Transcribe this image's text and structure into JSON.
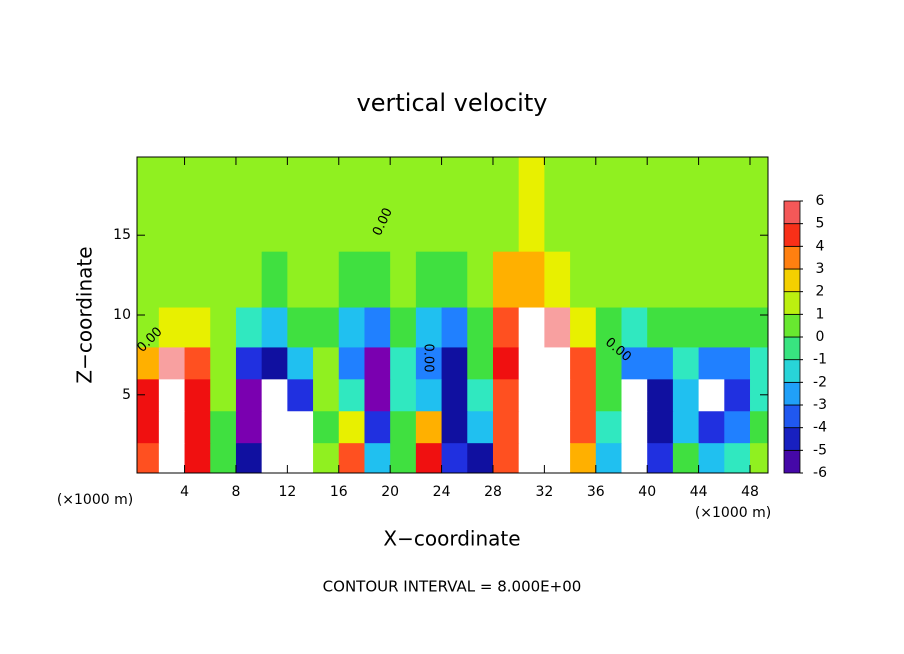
{
  "chart_data": {
    "type": "heatmap",
    "title": "vertical velocity",
    "x_label": "X−coordinate",
    "y_label": "Z−coordinate",
    "x_unit_label": "(×1000 m)",
    "x_unit_label_right": "(×1000 m)",
    "footnote": "CONTOUR INTERVAL = 8.000E+00",
    "contour_labels": [
      "0.00",
      "0.00",
      "0.00",
      "0.00"
    ],
    "x": [
      1,
      3,
      5,
      7,
      9,
      11,
      13,
      15,
      17,
      19,
      21,
      23,
      25,
      27,
      29,
      31,
      33,
      35,
      37,
      39,
      41,
      43,
      45,
      47,
      49
    ],
    "y": [
      1,
      3,
      5,
      7,
      9,
      12,
      16
    ],
    "z": [
      [
        4,
        8,
        5,
        0,
        -5,
        -7,
        -7,
        1,
        4,
        -2,
        0,
        5,
        -4,
        -5,
        4,
        8,
        7,
        3,
        -2,
        -7,
        -4,
        0,
        -2,
        -1,
        1
      ],
      [
        5,
        8,
        5,
        0,
        -6,
        -8,
        -7,
        0,
        2,
        -4,
        0,
        3,
        -5,
        -2,
        4,
        8,
        8,
        4,
        -1,
        -8,
        -5,
        -2,
        -4,
        -3,
        0
      ],
      [
        5,
        8,
        5,
        1,
        -6,
        -8,
        -4,
        1,
        -1,
        -6,
        -1,
        -2,
        -5,
        -1,
        4,
        8,
        8,
        4,
        0,
        -8,
        -5,
        -2,
        -7,
        -4,
        -1
      ],
      [
        3,
        6,
        4,
        1,
        -4,
        -5,
        -2,
        1,
        -3,
        -6,
        -1,
        -3,
        -5,
        0,
        5,
        8,
        8,
        4,
        0,
        -3,
        -3,
        -1,
        -3,
        -3,
        -1
      ],
      [
        1,
        2,
        2,
        1,
        -1,
        -2,
        0,
        0,
        -2,
        -3,
        0,
        -2,
        -3,
        0,
        4,
        7,
        6,
        2,
        0,
        -1,
        0,
        0,
        0,
        0,
        0
      ],
      [
        1,
        1,
        1,
        1,
        1,
        0,
        1,
        1,
        0,
        0,
        1,
        0,
        0,
        1,
        3,
        3,
        2,
        1,
        1,
        1,
        1,
        1,
        1,
        1,
        1
      ],
      [
        1,
        1,
        1,
        1,
        1,
        1,
        1,
        1,
        1,
        1,
        1,
        1,
        1,
        1,
        1,
        2,
        1,
        1,
        1,
        1,
        1,
        1,
        1,
        1,
        1
      ]
    ],
    "xlim": [
      0.3,
      49.4
    ],
    "ylim": [
      0.1,
      19.9
    ],
    "xticks": [
      4,
      8,
      12,
      16,
      20,
      24,
      28,
      32,
      36,
      40,
      44,
      48
    ],
    "yticks": [
      5,
      10,
      15
    ],
    "colorbar_ticks": [
      -6,
      -5,
      -4,
      -3,
      -2,
      -1,
      0,
      1,
      2,
      3,
      4,
      5,
      6
    ],
    "colors": [
      "#7a00b0",
      "#1010a0",
      "#2030e0",
      "#2080ff",
      "#20c0f0",
      "#30e8c0",
      "#40e040",
      "#90f020",
      "#e8f000",
      "#ffb000",
      "#ff5020",
      "#f01010",
      "#f8a0a0"
    ],
    "out_of_range_color": "#ffffff"
  }
}
